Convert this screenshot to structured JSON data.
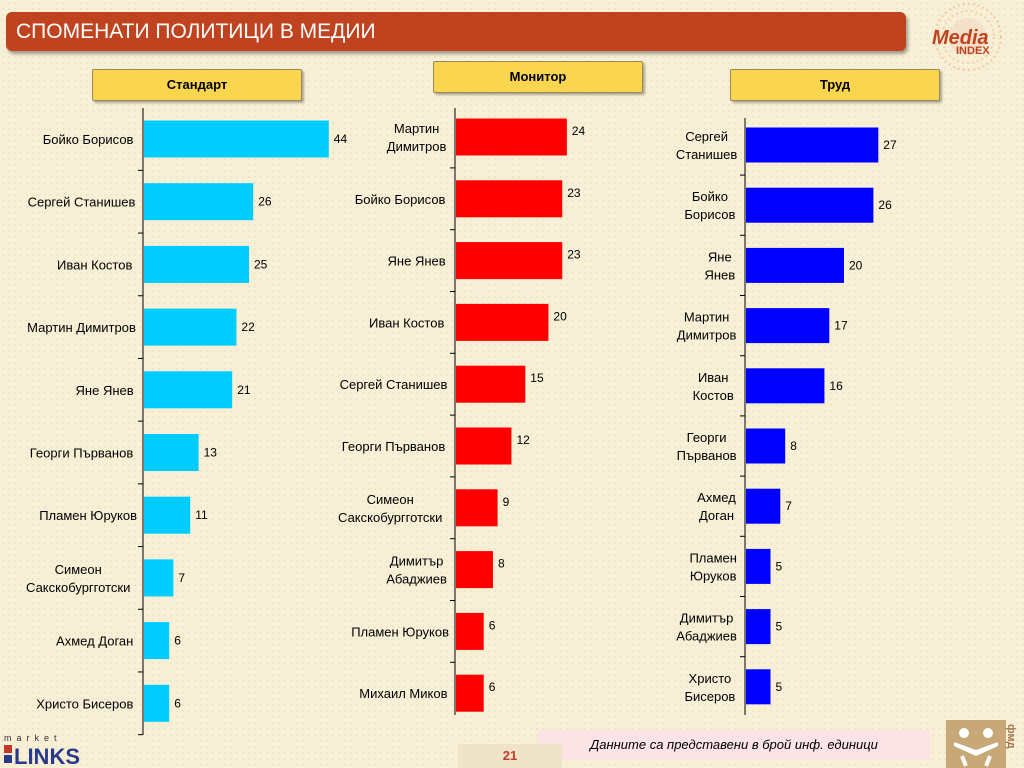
{
  "header": {
    "title": "СПОМЕНАТИ ПОЛИТИЦИ В МЕДИИ"
  },
  "logos": {
    "media_index_line1": "Media",
    "media_index_line2": "INDEX",
    "links_top": "market",
    "links_bottom": "LINKS",
    "fmd": "фмд"
  },
  "colors": {
    "title_bg": "#c0431f",
    "standart": "#00ccff",
    "monitor": "#ff0000",
    "trud": "#0000ff",
    "label_bg": "#f9d64e"
  },
  "chart_data": [
    {
      "type": "bar",
      "orientation": "horizontal",
      "title": "Стандарт",
      "categories": [
        "Бойко Борисов",
        "Сергей Станишев",
        "Иван Костов",
        "Мартин Димитров",
        "Яне Янев",
        "Георги Първанов",
        "Пламен Юруков",
        "Симеон Сакскобургготски",
        "Ахмед Доган",
        "Христо Бисеров"
      ],
      "values": [
        44,
        26,
        25,
        22,
        21,
        13,
        11,
        7,
        6,
        6
      ],
      "color": "#00ccff"
    },
    {
      "type": "bar",
      "orientation": "horizontal",
      "title": "Монитор",
      "categories": [
        "Мартин Димитров",
        "Бойко Борисов",
        "Яне Янев",
        "Иван Костов",
        "Сергей Станишев",
        "Георги Първанов",
        "Симеон Сакскобургготски",
        "Димитър Абаджиев",
        "Пламен Юруков",
        "Михаил Миков"
      ],
      "values": [
        24,
        23,
        23,
        20,
        15,
        12,
        9,
        8,
        6,
        6
      ],
      "color": "#ff0000"
    },
    {
      "type": "bar",
      "orientation": "horizontal",
      "title": "Труд",
      "categories": [
        "Сергей Станишев",
        "Бойко Борисов",
        "Яне Янев",
        "Мартин Димитров",
        "Иван Костов",
        "Георги Първанов",
        "Ахмед Доган",
        "Пламен Юруков",
        "Димитър Абаджиев",
        "Христо Бисеров"
      ],
      "values": [
        27,
        26,
        20,
        17,
        16,
        8,
        7,
        5,
        5,
        5
      ],
      "color": "#0000ff"
    }
  ],
  "footer": {
    "note": "Данните са представени в брой инф. единици",
    "page": "21"
  }
}
